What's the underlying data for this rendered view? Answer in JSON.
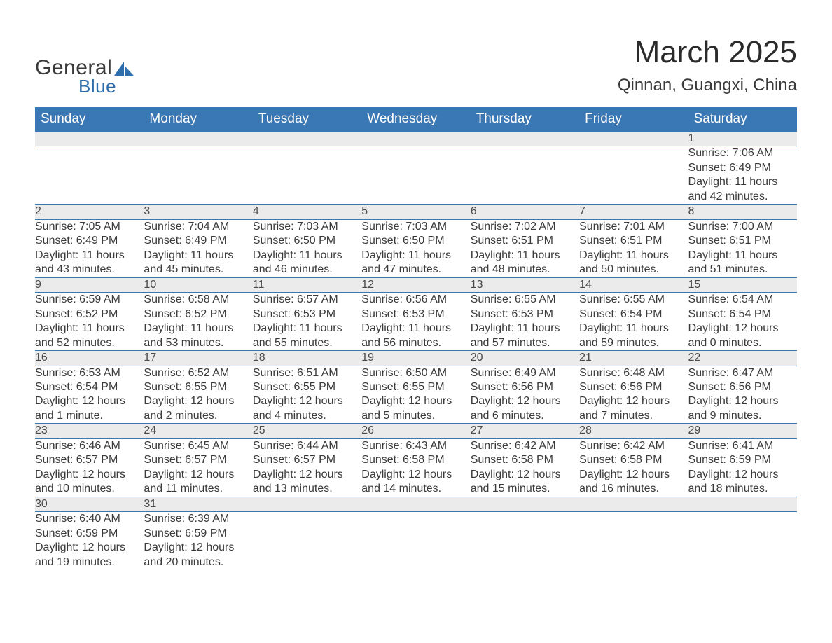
{
  "brand": {
    "word1": "General",
    "word2": "Blue",
    "logo_fill": "#2f6ead"
  },
  "title": "March 2025",
  "subtitle": "Qinnan, Guangxi, China",
  "colors": {
    "header_bg": "#3a78b5",
    "day_bg": "#ebebeb",
    "row_border": "#3a78b5",
    "text": "#3a3a3a"
  },
  "weekdays": [
    "Sunday",
    "Monday",
    "Tuesday",
    "Wednesday",
    "Thursday",
    "Friday",
    "Saturday"
  ],
  "weeks": [
    [
      null,
      null,
      null,
      null,
      null,
      null,
      {
        "d": "1",
        "sr": "Sunrise: 7:06 AM",
        "ss": "Sunset: 6:49 PM",
        "dl1": "Daylight: 11 hours",
        "dl2": "and 42 minutes."
      }
    ],
    [
      {
        "d": "2",
        "sr": "Sunrise: 7:05 AM",
        "ss": "Sunset: 6:49 PM",
        "dl1": "Daylight: 11 hours",
        "dl2": "and 43 minutes."
      },
      {
        "d": "3",
        "sr": "Sunrise: 7:04 AM",
        "ss": "Sunset: 6:49 PM",
        "dl1": "Daylight: 11 hours",
        "dl2": "and 45 minutes."
      },
      {
        "d": "4",
        "sr": "Sunrise: 7:03 AM",
        "ss": "Sunset: 6:50 PM",
        "dl1": "Daylight: 11 hours",
        "dl2": "and 46 minutes."
      },
      {
        "d": "5",
        "sr": "Sunrise: 7:03 AM",
        "ss": "Sunset: 6:50 PM",
        "dl1": "Daylight: 11 hours",
        "dl2": "and 47 minutes."
      },
      {
        "d": "6",
        "sr": "Sunrise: 7:02 AM",
        "ss": "Sunset: 6:51 PM",
        "dl1": "Daylight: 11 hours",
        "dl2": "and 48 minutes."
      },
      {
        "d": "7",
        "sr": "Sunrise: 7:01 AM",
        "ss": "Sunset: 6:51 PM",
        "dl1": "Daylight: 11 hours",
        "dl2": "and 50 minutes."
      },
      {
        "d": "8",
        "sr": "Sunrise: 7:00 AM",
        "ss": "Sunset: 6:51 PM",
        "dl1": "Daylight: 11 hours",
        "dl2": "and 51 minutes."
      }
    ],
    [
      {
        "d": "9",
        "sr": "Sunrise: 6:59 AM",
        "ss": "Sunset: 6:52 PM",
        "dl1": "Daylight: 11 hours",
        "dl2": "and 52 minutes."
      },
      {
        "d": "10",
        "sr": "Sunrise: 6:58 AM",
        "ss": "Sunset: 6:52 PM",
        "dl1": "Daylight: 11 hours",
        "dl2": "and 53 minutes."
      },
      {
        "d": "11",
        "sr": "Sunrise: 6:57 AM",
        "ss": "Sunset: 6:53 PM",
        "dl1": "Daylight: 11 hours",
        "dl2": "and 55 minutes."
      },
      {
        "d": "12",
        "sr": "Sunrise: 6:56 AM",
        "ss": "Sunset: 6:53 PM",
        "dl1": "Daylight: 11 hours",
        "dl2": "and 56 minutes."
      },
      {
        "d": "13",
        "sr": "Sunrise: 6:55 AM",
        "ss": "Sunset: 6:53 PM",
        "dl1": "Daylight: 11 hours",
        "dl2": "and 57 minutes."
      },
      {
        "d": "14",
        "sr": "Sunrise: 6:55 AM",
        "ss": "Sunset: 6:54 PM",
        "dl1": "Daylight: 11 hours",
        "dl2": "and 59 minutes."
      },
      {
        "d": "15",
        "sr": "Sunrise: 6:54 AM",
        "ss": "Sunset: 6:54 PM",
        "dl1": "Daylight: 12 hours",
        "dl2": "and 0 minutes."
      }
    ],
    [
      {
        "d": "16",
        "sr": "Sunrise: 6:53 AM",
        "ss": "Sunset: 6:54 PM",
        "dl1": "Daylight: 12 hours",
        "dl2": "and 1 minute."
      },
      {
        "d": "17",
        "sr": "Sunrise: 6:52 AM",
        "ss": "Sunset: 6:55 PM",
        "dl1": "Daylight: 12 hours",
        "dl2": "and 2 minutes."
      },
      {
        "d": "18",
        "sr": "Sunrise: 6:51 AM",
        "ss": "Sunset: 6:55 PM",
        "dl1": "Daylight: 12 hours",
        "dl2": "and 4 minutes."
      },
      {
        "d": "19",
        "sr": "Sunrise: 6:50 AM",
        "ss": "Sunset: 6:55 PM",
        "dl1": "Daylight: 12 hours",
        "dl2": "and 5 minutes."
      },
      {
        "d": "20",
        "sr": "Sunrise: 6:49 AM",
        "ss": "Sunset: 6:56 PM",
        "dl1": "Daylight: 12 hours",
        "dl2": "and 6 minutes."
      },
      {
        "d": "21",
        "sr": "Sunrise: 6:48 AM",
        "ss": "Sunset: 6:56 PM",
        "dl1": "Daylight: 12 hours",
        "dl2": "and 7 minutes."
      },
      {
        "d": "22",
        "sr": "Sunrise: 6:47 AM",
        "ss": "Sunset: 6:56 PM",
        "dl1": "Daylight: 12 hours",
        "dl2": "and 9 minutes."
      }
    ],
    [
      {
        "d": "23",
        "sr": "Sunrise: 6:46 AM",
        "ss": "Sunset: 6:57 PM",
        "dl1": "Daylight: 12 hours",
        "dl2": "and 10 minutes."
      },
      {
        "d": "24",
        "sr": "Sunrise: 6:45 AM",
        "ss": "Sunset: 6:57 PM",
        "dl1": "Daylight: 12 hours",
        "dl2": "and 11 minutes."
      },
      {
        "d": "25",
        "sr": "Sunrise: 6:44 AM",
        "ss": "Sunset: 6:57 PM",
        "dl1": "Daylight: 12 hours",
        "dl2": "and 13 minutes."
      },
      {
        "d": "26",
        "sr": "Sunrise: 6:43 AM",
        "ss": "Sunset: 6:58 PM",
        "dl1": "Daylight: 12 hours",
        "dl2": "and 14 minutes."
      },
      {
        "d": "27",
        "sr": "Sunrise: 6:42 AM",
        "ss": "Sunset: 6:58 PM",
        "dl1": "Daylight: 12 hours",
        "dl2": "and 15 minutes."
      },
      {
        "d": "28",
        "sr": "Sunrise: 6:42 AM",
        "ss": "Sunset: 6:58 PM",
        "dl1": "Daylight: 12 hours",
        "dl2": "and 16 minutes."
      },
      {
        "d": "29",
        "sr": "Sunrise: 6:41 AM",
        "ss": "Sunset: 6:59 PM",
        "dl1": "Daylight: 12 hours",
        "dl2": "and 18 minutes."
      }
    ],
    [
      {
        "d": "30",
        "sr": "Sunrise: 6:40 AM",
        "ss": "Sunset: 6:59 PM",
        "dl1": "Daylight: 12 hours",
        "dl2": "and 19 minutes."
      },
      {
        "d": "31",
        "sr": "Sunrise: 6:39 AM",
        "ss": "Sunset: 6:59 PM",
        "dl1": "Daylight: 12 hours",
        "dl2": "and 20 minutes."
      },
      null,
      null,
      null,
      null,
      null
    ]
  ]
}
